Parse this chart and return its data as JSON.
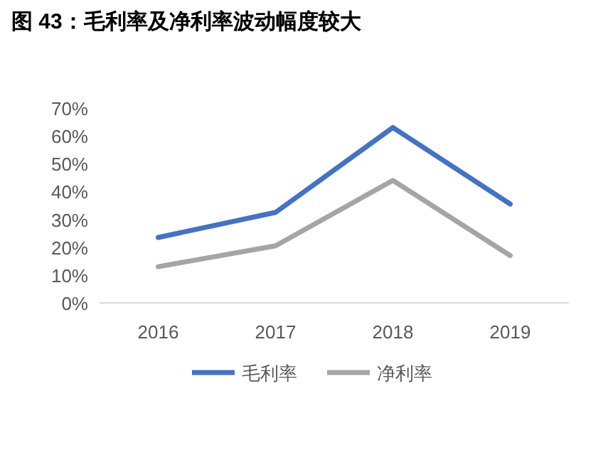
{
  "chart_data": {
    "type": "line",
    "title": "图 43：毛利率及净利率波动幅度较大",
    "categories": [
      "2016",
      "2017",
      "2018",
      "2019"
    ],
    "series": [
      {
        "name": "毛利率",
        "color": "#4472c4",
        "values": [
          23.5,
          32.5,
          63,
          35.5
        ]
      },
      {
        "name": "净利率",
        "color": "#a5a5a5",
        "values": [
          13,
          20.5,
          44,
          17
        ]
      }
    ],
    "ylim": [
      0,
      70
    ],
    "yticks": [
      {
        "value": 0,
        "label": "0%"
      },
      {
        "value": 10,
        "label": "10%"
      },
      {
        "value": 20,
        "label": "20%"
      },
      {
        "value": 30,
        "label": "30%"
      },
      {
        "value": 40,
        "label": "40%"
      },
      {
        "value": 50,
        "label": "50%"
      },
      {
        "value": 60,
        "label": "60%"
      },
      {
        "value": 70,
        "label": "70%"
      }
    ],
    "legend": "bottom",
    "grid": false,
    "marker": "none",
    "line_style": "solid"
  }
}
